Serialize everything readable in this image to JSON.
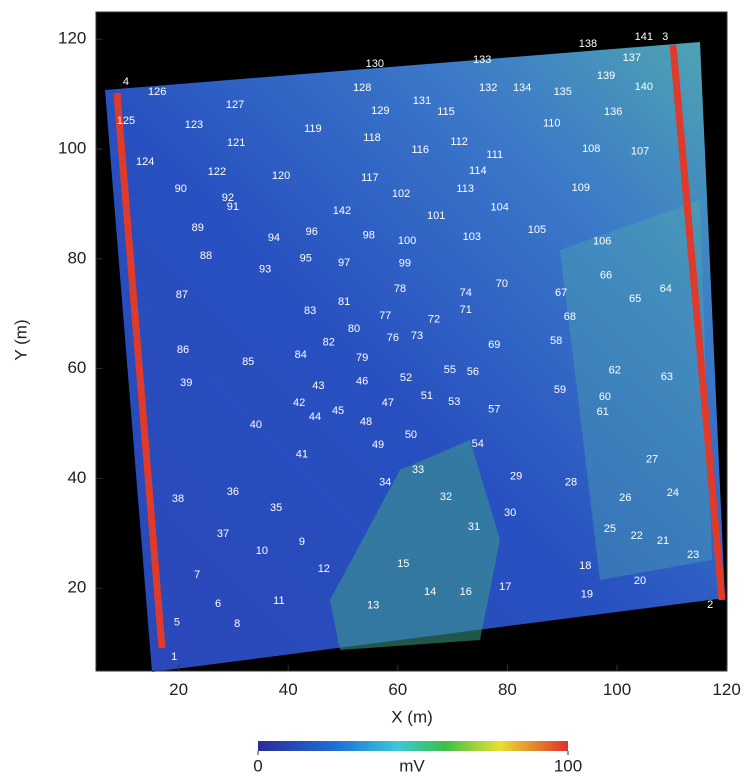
{
  "chart_data": {
    "type": "survey-map",
    "xlabel": "X (m)",
    "ylabel": "Y (m)",
    "xlim": [
      5,
      120
    ],
    "ylim": [
      5,
      125
    ],
    "xticks": [
      20,
      40,
      60,
      80,
      100,
      120
    ],
    "yticks": [
      20,
      40,
      60,
      80,
      100,
      120
    ],
    "colorbar": {
      "label": "mV",
      "lim": [
        0,
        100
      ],
      "ticks": [
        0,
        100
      ]
    },
    "anomalies": [
      {
        "label": "1",
        "x": 19.2,
        "y": 7.5
      },
      {
        "label": "2",
        "x": 117,
        "y": 16.9
      },
      {
        "label": "3",
        "x": 108.8,
        "y": 120.4
      },
      {
        "label": "4",
        "x": 10.4,
        "y": 112.2
      },
      {
        "label": "5",
        "x": 19.7,
        "y": 13.7
      },
      {
        "label": "6",
        "x": 27.2,
        "y": 17.1
      },
      {
        "label": "7",
        "x": 23.4,
        "y": 22.4
      },
      {
        "label": "8",
        "x": 30.7,
        "y": 13.5
      },
      {
        "label": "9",
        "x": 42.5,
        "y": 28.4
      },
      {
        "label": "10",
        "x": 35.2,
        "y": 26.8
      },
      {
        "label": "11",
        "x": 38.3,
        "y": 17.7
      },
      {
        "label": "12",
        "x": 46.5,
        "y": 23.5
      },
      {
        "label": "13",
        "x": 55.5,
        "y": 16.8
      },
      {
        "label": "14",
        "x": 65.9,
        "y": 19.3
      },
      {
        "label": "15",
        "x": 61,
        "y": 24.4
      },
      {
        "label": "16",
        "x": 72.4,
        "y": 19.3
      },
      {
        "label": "17",
        "x": 79.6,
        "y": 20.2
      },
      {
        "label": "18",
        "x": 94.2,
        "y": 24
      },
      {
        "label": "19",
        "x": 94.5,
        "y": 18.8
      },
      {
        "label": "20",
        "x": 104.2,
        "y": 21.3
      },
      {
        "label": "21",
        "x": 108.4,
        "y": 28.6
      },
      {
        "label": "22",
        "x": 103.6,
        "y": 29.5
      },
      {
        "label": "23",
        "x": 113.9,
        "y": 26
      },
      {
        "label": "24",
        "x": 110.2,
        "y": 37.3
      },
      {
        "label": "25",
        "x": 98.7,
        "y": 30.8
      },
      {
        "label": "26",
        "x": 101.5,
        "y": 36.4
      },
      {
        "label": "27",
        "x": 106.4,
        "y": 43.4
      },
      {
        "label": "28",
        "x": 91.6,
        "y": 39.2
      },
      {
        "label": "29",
        "x": 81.6,
        "y": 40.3
      },
      {
        "label": "30",
        "x": 80.5,
        "y": 33.7
      },
      {
        "label": "31",
        "x": 73.9,
        "y": 31.1
      },
      {
        "label": "32",
        "x": 68.8,
        "y": 36.6
      },
      {
        "label": "33",
        "x": 63.7,
        "y": 41.5
      },
      {
        "label": "34",
        "x": 57.7,
        "y": 39.2
      },
      {
        "label": "35",
        "x": 37.8,
        "y": 34.6
      },
      {
        "label": "36",
        "x": 29.9,
        "y": 37.5
      },
      {
        "label": "37",
        "x": 28.1,
        "y": 29.9
      },
      {
        "label": "38",
        "x": 19.9,
        "y": 36.2
      },
      {
        "label": "39",
        "x": 21.4,
        "y": 57.4
      },
      {
        "label": "40",
        "x": 34.1,
        "y": 49.7
      },
      {
        "label": "41",
        "x": 42.5,
        "y": 44.3
      },
      {
        "label": "42",
        "x": 42,
        "y": 53.7
      },
      {
        "label": "43",
        "x": 45.5,
        "y": 56.8
      },
      {
        "label": "44",
        "x": 44.9,
        "y": 51.2
      },
      {
        "label": "45",
        "x": 49.1,
        "y": 52.3
      },
      {
        "label": "46",
        "x": 53.5,
        "y": 57.6
      },
      {
        "label": "47",
        "x": 58.2,
        "y": 53.7
      },
      {
        "label": "48",
        "x": 54.2,
        "y": 50.3
      },
      {
        "label": "49",
        "x": 56.4,
        "y": 46.1
      },
      {
        "label": "50",
        "x": 62.4,
        "y": 47.9
      },
      {
        "label": "51",
        "x": 65.3,
        "y": 55
      },
      {
        "label": "52",
        "x": 61.5,
        "y": 58.3
      },
      {
        "label": "53",
        "x": 70.3,
        "y": 53.9
      },
      {
        "label": "54",
        "x": 74.6,
        "y": 46.3
      },
      {
        "label": "55",
        "x": 69.5,
        "y": 59.7
      },
      {
        "label": "56",
        "x": 73.7,
        "y": 59.4
      },
      {
        "label": "57",
        "x": 77.6,
        "y": 52.5
      },
      {
        "label": "58",
        "x": 88.9,
        "y": 65
      },
      {
        "label": "59",
        "x": 89.6,
        "y": 56.1
      },
      {
        "label": "60",
        "x": 97.8,
        "y": 54.8
      },
      {
        "label": "61",
        "x": 97.4,
        "y": 52.1
      },
      {
        "label": "62",
        "x": 99.6,
        "y": 59.6
      },
      {
        "label": "63",
        "x": 109.1,
        "y": 58.5
      },
      {
        "label": "64",
        "x": 108.9,
        "y": 74.5
      },
      {
        "label": "65",
        "x": 103.3,
        "y": 72.7
      },
      {
        "label": "66",
        "x": 98,
        "y": 76.9
      },
      {
        "label": "67",
        "x": 89.8,
        "y": 73.8
      },
      {
        "label": "68",
        "x": 91.4,
        "y": 69.4
      },
      {
        "label": "69",
        "x": 77.6,
        "y": 64.3
      },
      {
        "label": "70",
        "x": 79,
        "y": 75.4
      },
      {
        "label": "71",
        "x": 72.4,
        "y": 70.7
      },
      {
        "label": "72",
        "x": 66.6,
        "y": 68.9
      },
      {
        "label": "73",
        "x": 63.5,
        "y": 65.9
      },
      {
        "label": "74",
        "x": 72.4,
        "y": 73.8
      },
      {
        "label": "76",
        "x": 59.1,
        "y": 65.6
      },
      {
        "label": "77",
        "x": 57.7,
        "y": 69.6
      },
      {
        "label": "78",
        "x": 60.4,
        "y": 74.5
      },
      {
        "label": "79",
        "x": 53.5,
        "y": 61.9
      },
      {
        "label": "80",
        "x": 52,
        "y": 67.2
      },
      {
        "label": "81",
        "x": 50.2,
        "y": 72.1
      },
      {
        "label": "82",
        "x": 47.4,
        "y": 64.7
      },
      {
        "label": "83",
        "x": 44,
        "y": 70.5
      },
      {
        "label": "84",
        "x": 42.3,
        "y": 62.5
      },
      {
        "label": "85",
        "x": 32.7,
        "y": 61.2
      },
      {
        "label": "86",
        "x": 20.8,
        "y": 63.4
      },
      {
        "label": "87",
        "x": 20.6,
        "y": 73.4
      },
      {
        "label": "88",
        "x": 25,
        "y": 80.5
      },
      {
        "label": "89",
        "x": 23.5,
        "y": 85.6
      },
      {
        "label": "90",
        "x": 20.4,
        "y": 92.7
      },
      {
        "label": "91",
        "x": 29.9,
        "y": 89.4
      },
      {
        "label": "92",
        "x": 29,
        "y": 91.1
      },
      {
        "label": "93",
        "x": 35.8,
        "y": 78
      },
      {
        "label": "94",
        "x": 37.4,
        "y": 83.8
      },
      {
        "label": "95",
        "x": 43.2,
        "y": 80
      },
      {
        "label": "96",
        "x": 44.3,
        "y": 84.9
      },
      {
        "label": "97",
        "x": 50.2,
        "y": 79.2
      },
      {
        "label": "98",
        "x": 54.7,
        "y": 84.2
      },
      {
        "label": "99",
        "x": 61.3,
        "y": 79.1
      },
      {
        "label": "100",
        "x": 61.7,
        "y": 83.2
      },
      {
        "label": "101",
        "x": 67,
        "y": 87.8
      },
      {
        "label": "102",
        "x": 60.6,
        "y": 91.8
      },
      {
        "label": "103",
        "x": 73.5,
        "y": 84
      },
      {
        "label": "104",
        "x": 78.6,
        "y": 89.3
      },
      {
        "label": "105",
        "x": 85.4,
        "y": 85.2
      },
      {
        "label": "106",
        "x": 97.3,
        "y": 83.1
      },
      {
        "label": "107",
        "x": 104.2,
        "y": 99.5
      },
      {
        "label": "108",
        "x": 95.3,
        "y": 100
      },
      {
        "label": "109",
        "x": 93.4,
        "y": 92.9
      },
      {
        "label": "110",
        "x": 88.1,
        "y": 104.6
      },
      {
        "label": "111",
        "x": 77.7,
        "y": 98.9
      },
      {
        "label": "112",
        "x": 71.2,
        "y": 101.3
      },
      {
        "label": "113",
        "x": 72.3,
        "y": 92.7
      },
      {
        "label": "114",
        "x": 74.6,
        "y": 96
      },
      {
        "label": "115",
        "x": 68.8,
        "y": 106.7
      },
      {
        "label": "116",
        "x": 64.1,
        "y": 99.8
      },
      {
        "label": "117",
        "x": 54.9,
        "y": 94.7
      },
      {
        "label": "118",
        "x": 55.3,
        "y": 102
      },
      {
        "label": "119",
        "x": 44.5,
        "y": 103.6
      },
      {
        "label": "120",
        "x": 38.7,
        "y": 95.1
      },
      {
        "label": "121",
        "x": 30.5,
        "y": 101.1
      },
      {
        "label": "122",
        "x": 27,
        "y": 95.8
      },
      {
        "label": "123",
        "x": 22.8,
        "y": 104.4
      },
      {
        "label": "124",
        "x": 13.9,
        "y": 97.6
      },
      {
        "label": "125",
        "x": 10.4,
        "y": 105.1
      },
      {
        "label": "126",
        "x": 16.1,
        "y": 110.4
      },
      {
        "label": "127",
        "x": 30.3,
        "y": 108
      },
      {
        "label": "128",
        "x": 53.5,
        "y": 111.1
      },
      {
        "label": "129",
        "x": 56.8,
        "y": 106.9
      },
      {
        "label": "130",
        "x": 55.8,
        "y": 115.5
      },
      {
        "label": "131",
        "x": 64.4,
        "y": 108.7
      },
      {
        "label": "132",
        "x": 76.5,
        "y": 111.1
      },
      {
        "label": "133",
        "x": 75.4,
        "y": 116.2
      },
      {
        "label": "134",
        "x": 82.7,
        "y": 111.1
      },
      {
        "label": "135",
        "x": 90.1,
        "y": 110.4
      },
      {
        "label": "136",
        "x": 99.3,
        "y": 106.7
      },
      {
        "label": "137",
        "x": 102.7,
        "y": 116.6
      },
      {
        "label": "138",
        "x": 94.7,
        "y": 119.1
      },
      {
        "label": "139",
        "x": 98,
        "y": 113.3
      },
      {
        "label": "140",
        "x": 104.9,
        "y": 111.3
      },
      {
        "label": "141",
        "x": 104.9,
        "y": 120.4
      },
      {
        "label": "142",
        "x": 49.8,
        "y": 88.7
      }
    ]
  }
}
